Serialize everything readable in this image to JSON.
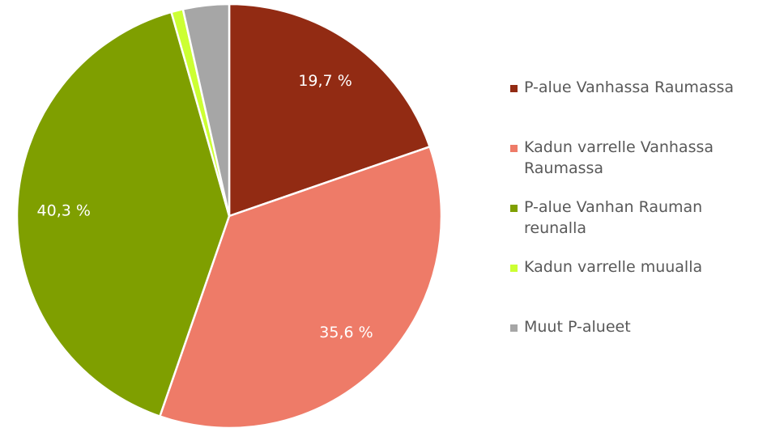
{
  "chart_data": {
    "type": "pie",
    "categories": [
      "P-alue Vanhassa Raumassa",
      "Kadun varrelle Vanhassa Raumassa",
      "P-alue Vanhan Rauman reunalla",
      "Kadun varrelle muualla",
      "Muut P-alueet"
    ],
    "values": [
      19.7,
      35.6,
      40.3,
      0.9,
      3.5
    ],
    "value_labels": [
      "19,7 %",
      "35,6 %",
      "40,3 %",
      null,
      null
    ],
    "colors": [
      "#922b13",
      "#ee7b68",
      "#7f9f00",
      "#ccff33",
      "#a6a6a6"
    ],
    "legend": "right"
  }
}
